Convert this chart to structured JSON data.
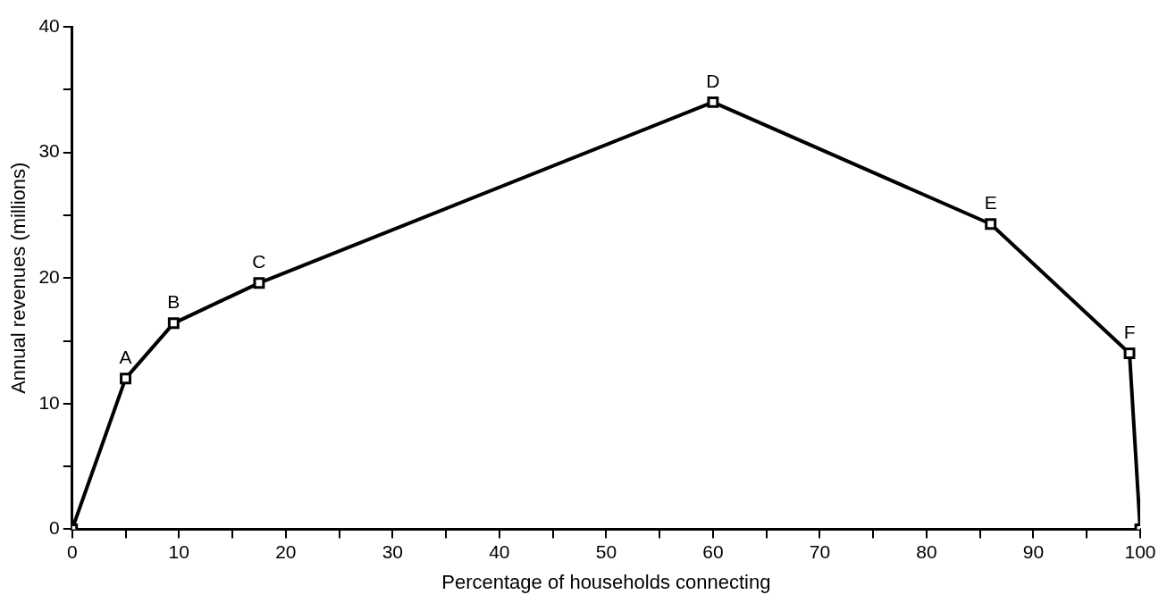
{
  "chart_data": {
    "type": "line",
    "xlabel": "Percentage of households connecting",
    "ylabel": "Annual revenues (millions)",
    "x": [
      0,
      5,
      9.5,
      17.5,
      60,
      86,
      99,
      100
    ],
    "series": [
      {
        "color": "#000000",
        "values": [
          0,
          12,
          16.4,
          19.6,
          34,
          24.3,
          14,
          0
        ]
      }
    ],
    "xlim": [
      0,
      100
    ],
    "ylim": [
      0,
      40
    ],
    "xticks": [
      0,
      {
        "value": 5,
        "label": null
      },
      10,
      {
        "value": 15,
        "label": null
      },
      20,
      {
        "value": 25,
        "label": null
      },
      30,
      {
        "value": 35,
        "label": null
      },
      40,
      {
        "value": 45,
        "label": null
      },
      50,
      {
        "value": 55,
        "label": null
      },
      60,
      {
        "value": 65,
        "label": null
      },
      70,
      {
        "value": 75,
        "label": null
      },
      80,
      {
        "value": 85,
        "label": null
      },
      90,
      {
        "value": 95,
        "label": null
      },
      100
    ],
    "yticks": [
      0,
      {
        "value": 5,
        "label": null
      },
      10,
      {
        "value": 15,
        "label": null
      },
      20,
      {
        "value": 25,
        "label": null
      },
      30,
      {
        "value": 35,
        "label": null
      },
      40
    ],
    "annotations": [
      {
        "text": "A",
        "x": 5,
        "y": 12
      },
      {
        "text": "B",
        "x": 9.5,
        "y": 16.4
      },
      {
        "text": "C",
        "x": 17.5,
        "y": 19.6
      },
      {
        "text": "D",
        "x": 60,
        "y": 34
      },
      {
        "text": "E",
        "x": 86,
        "y": 24.3
      },
      {
        "text": "F",
        "x": 99,
        "y": 14
      }
    ],
    "grid": false,
    "legend": false,
    "marker": "square",
    "line_style": "solid"
  }
}
